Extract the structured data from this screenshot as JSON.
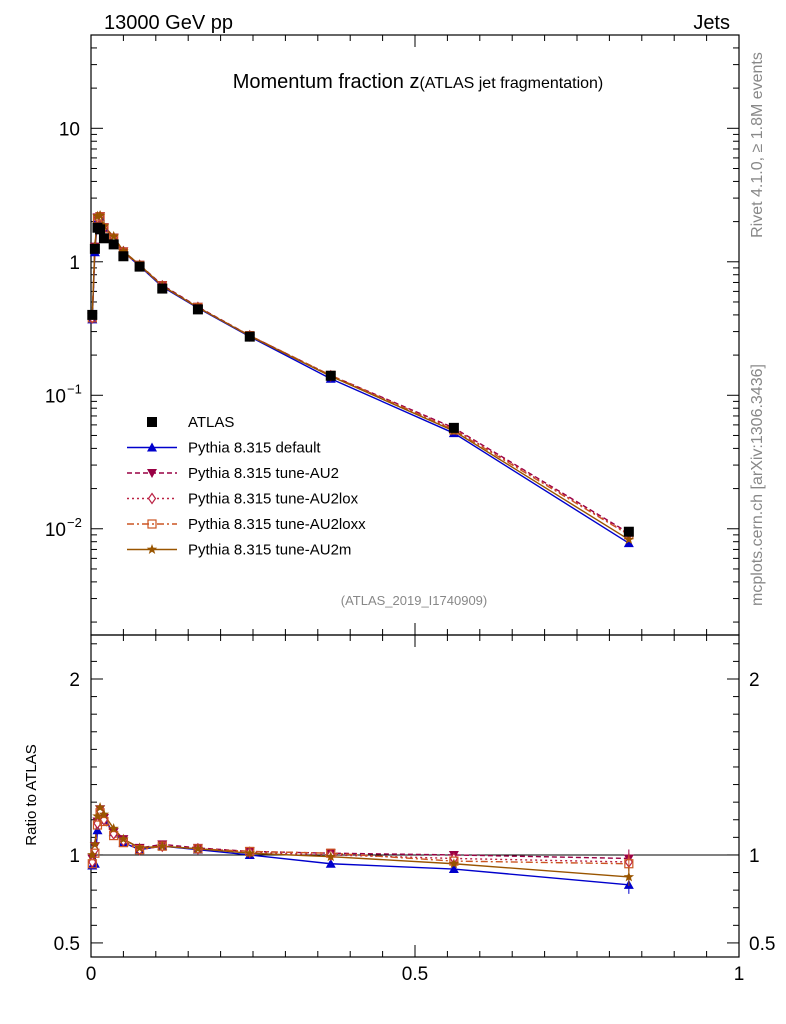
{
  "header": {
    "left": "13000 GeV pp",
    "right": "Jets",
    "rivet": "Rivet 4.1.0, ≥ 1.8M events",
    "mcplots": "mcplots.cern.ch [arXiv:1306.3436]"
  },
  "chart_data": [
    {
      "type": "line",
      "yscale": "log",
      "title": "Momentum fraction z",
      "title_suffix": "(ATLAS jet fragmentation)",
      "watermark": "(ATLAS_2019_I1740909)",
      "xlim": [
        0,
        1
      ],
      "ylim": [
        0.0016,
        50
      ],
      "y_ticks": [
        {
          "value": 0.01,
          "label": "10",
          "exp": "−2"
        },
        {
          "value": 0.1,
          "label": "10",
          "exp": "−1"
        },
        {
          "value": 1,
          "label": "1",
          "exp": ""
        },
        {
          "value": 10,
          "label": "10",
          "exp": ""
        }
      ],
      "x": [
        0.002,
        0.006,
        0.01,
        0.014,
        0.02,
        0.035,
        0.05,
        0.075,
        0.11,
        0.165,
        0.245,
        0.37,
        0.56,
        0.83
      ],
      "data": {
        "name": "ATLAS",
        "color": "#000000",
        "values": [
          0.4,
          1.25,
          1.8,
          1.75,
          1.5,
          1.35,
          1.1,
          0.92,
          0.63,
          0.44,
          0.275,
          0.14,
          0.057,
          0.0095
        ]
      },
      "series": [
        {
          "name": "Pythia 8.315 default",
          "color": "#0000cc",
          "marker": "triangle-up",
          "dash": "",
          "values": [
            0.37,
            1.18,
            2.05,
            2.15,
            1.8,
            1.52,
            1.18,
            0.93,
            0.65,
            0.45,
            0.275,
            0.133,
            0.052,
            0.0078
          ]
        },
        {
          "name": "Pythia 8.315 tune-AU2",
          "color": "#990044",
          "marker": "triangle-down",
          "dash": "5,3",
          "values": [
            0.39,
            1.3,
            2.15,
            2.2,
            1.82,
            1.52,
            1.2,
            0.95,
            0.67,
            0.46,
            0.28,
            0.141,
            0.057,
            0.0093
          ]
        },
        {
          "name": "Pythia 8.315 tune-AU2lox",
          "color": "#bb2244",
          "marker": "diamond-open",
          "dash": "2,3",
          "values": [
            0.38,
            1.28,
            2.12,
            2.18,
            1.8,
            1.51,
            1.19,
            0.94,
            0.66,
            0.455,
            0.279,
            0.14,
            0.056,
            0.0091
          ]
        },
        {
          "name": "Pythia 8.315 tune-AU2loxx",
          "color": "#cc5522",
          "marker": "square-open",
          "dash": "7,3,2,3",
          "values": [
            0.38,
            1.26,
            2.1,
            2.17,
            1.79,
            1.5,
            1.18,
            0.94,
            0.66,
            0.455,
            0.28,
            0.141,
            0.055,
            0.009
          ]
        },
        {
          "name": "Pythia 8.315 tune-AU2m",
          "color": "#995500",
          "marker": "star",
          "dash": "",
          "values": [
            0.4,
            1.32,
            2.2,
            2.22,
            1.85,
            1.55,
            1.2,
            0.95,
            0.66,
            0.455,
            0.278,
            0.139,
            0.054,
            0.0083
          ]
        }
      ]
    },
    {
      "type": "line",
      "ylabel": "Ratio to ATLAS",
      "xlim": [
        0,
        1
      ],
      "ylim": [
        0.42,
        2.25
      ],
      "y_ticks": [
        {
          "value": 0.5,
          "label": "0.5"
        },
        {
          "value": 1,
          "label": "1"
        },
        {
          "value": 2,
          "label": "2"
        }
      ],
      "x_ticks": [
        {
          "value": 0,
          "label": "0"
        },
        {
          "value": 0.5,
          "label": "0.5"
        },
        {
          "value": 1,
          "label": "1"
        }
      ],
      "x": [
        0.002,
        0.006,
        0.01,
        0.014,
        0.02,
        0.035,
        0.05,
        0.075,
        0.11,
        0.165,
        0.245,
        0.37,
        0.56,
        0.83
      ],
      "series": [
        {
          "name": "Pythia 8.315 default",
          "values": [
            0.94,
            0.95,
            1.14,
            1.23,
            1.2,
            1.13,
            1.07,
            1.03,
            1.05,
            1.03,
            1.0,
            0.95,
            0.92,
            0.83
          ]
        },
        {
          "name": "Pythia 8.315 tune-AU2",
          "values": [
            0.98,
            1.05,
            1.19,
            1.26,
            1.21,
            1.13,
            1.09,
            1.04,
            1.06,
            1.04,
            1.02,
            1.01,
            1.0,
            0.98
          ]
        },
        {
          "name": "Pythia 8.315 tune-AU2lox",
          "values": [
            0.96,
            1.03,
            1.18,
            1.25,
            1.2,
            1.12,
            1.08,
            1.03,
            1.05,
            1.035,
            1.015,
            1.0,
            0.98,
            0.96
          ]
        },
        {
          "name": "Pythia 8.315 tune-AU2loxx",
          "values": [
            0.95,
            1.01,
            1.17,
            1.24,
            1.19,
            1.11,
            1.07,
            1.03,
            1.05,
            1.035,
            1.02,
            1.01,
            0.965,
            0.95
          ]
        },
        {
          "name": "Pythia 8.315 tune-AU2m",
          "values": [
            1.0,
            1.06,
            1.22,
            1.27,
            1.23,
            1.15,
            1.09,
            1.04,
            1.05,
            1.035,
            1.01,
            0.99,
            0.95,
            0.875
          ]
        }
      ]
    }
  ]
}
